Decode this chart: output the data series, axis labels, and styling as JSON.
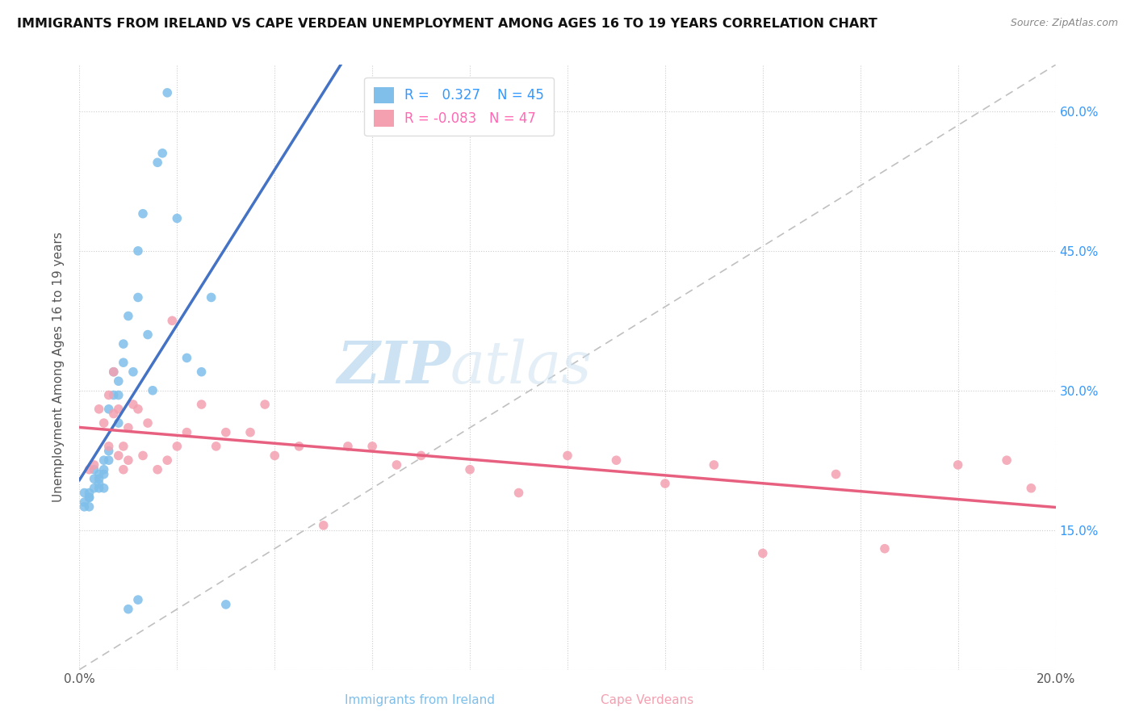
{
  "title": "IMMIGRANTS FROM IRELAND VS CAPE VERDEAN UNEMPLOYMENT AMONG AGES 16 TO 19 YEARS CORRELATION CHART",
  "source": "Source: ZipAtlas.com",
  "ylabel": "Unemployment Among Ages 16 to 19 years",
  "xlabel_ireland": "Immigrants from Ireland",
  "xlabel_capeverde": "Cape Verdeans",
  "r_ireland": 0.327,
  "n_ireland": 45,
  "r_capeverde": -0.083,
  "n_capeverde": 47,
  "xlim": [
    0.0,
    0.2
  ],
  "ylim": [
    0.0,
    0.65
  ],
  "xticks": [
    0.0,
    0.02,
    0.04,
    0.06,
    0.08,
    0.1,
    0.12,
    0.14,
    0.16,
    0.18,
    0.2
  ],
  "xticklabels": [
    "0.0%",
    "",
    "",
    "",
    "",
    "",
    "",
    "",
    "",
    "",
    "20.0%"
  ],
  "yticks_right": [
    0.15,
    0.3,
    0.45,
    0.6
  ],
  "yticklabels_right": [
    "15.0%",
    "30.0%",
    "45.0%",
    "60.0%"
  ],
  "color_ireland": "#7fbfea",
  "color_capeverde": "#f4a0b0",
  "color_ireland_line": "#4472c4",
  "color_capeverde_line": "#e86080",
  "ireland_x": [
    0.001,
    0.001,
    0.001,
    0.002,
    0.002,
    0.002,
    0.002,
    0.003,
    0.003,
    0.003,
    0.004,
    0.004,
    0.004,
    0.004,
    0.005,
    0.005,
    0.005,
    0.005,
    0.006,
    0.006,
    0.006,
    0.007,
    0.007,
    0.008,
    0.008,
    0.008,
    0.009,
    0.009,
    0.01,
    0.011,
    0.012,
    0.012,
    0.013,
    0.014,
    0.015,
    0.016,
    0.017,
    0.018,
    0.02,
    0.022,
    0.025,
    0.027,
    0.03,
    0.012,
    0.01
  ],
  "ireland_y": [
    0.19,
    0.175,
    0.18,
    0.185,
    0.175,
    0.185,
    0.19,
    0.205,
    0.215,
    0.195,
    0.205,
    0.21,
    0.2,
    0.195,
    0.215,
    0.225,
    0.21,
    0.195,
    0.225,
    0.235,
    0.28,
    0.295,
    0.32,
    0.265,
    0.295,
    0.31,
    0.33,
    0.35,
    0.38,
    0.32,
    0.4,
    0.45,
    0.49,
    0.36,
    0.3,
    0.545,
    0.555,
    0.62,
    0.485,
    0.335,
    0.32,
    0.4,
    0.07,
    0.075,
    0.065
  ],
  "capeverde_x": [
    0.002,
    0.003,
    0.004,
    0.005,
    0.006,
    0.006,
    0.007,
    0.007,
    0.008,
    0.008,
    0.009,
    0.009,
    0.01,
    0.01,
    0.011,
    0.012,
    0.013,
    0.014,
    0.016,
    0.018,
    0.019,
    0.02,
    0.022,
    0.025,
    0.028,
    0.03,
    0.035,
    0.038,
    0.04,
    0.045,
    0.05,
    0.055,
    0.06,
    0.065,
    0.07,
    0.08,
    0.09,
    0.1,
    0.11,
    0.12,
    0.13,
    0.14,
    0.155,
    0.165,
    0.18,
    0.19,
    0.195
  ],
  "capeverde_y": [
    0.215,
    0.22,
    0.28,
    0.265,
    0.24,
    0.295,
    0.275,
    0.32,
    0.23,
    0.28,
    0.215,
    0.24,
    0.225,
    0.26,
    0.285,
    0.28,
    0.23,
    0.265,
    0.215,
    0.225,
    0.375,
    0.24,
    0.255,
    0.285,
    0.24,
    0.255,
    0.255,
    0.285,
    0.23,
    0.24,
    0.155,
    0.24,
    0.24,
    0.22,
    0.23,
    0.215,
    0.19,
    0.23,
    0.225,
    0.2,
    0.22,
    0.125,
    0.21,
    0.13,
    0.22,
    0.225,
    0.195
  ]
}
